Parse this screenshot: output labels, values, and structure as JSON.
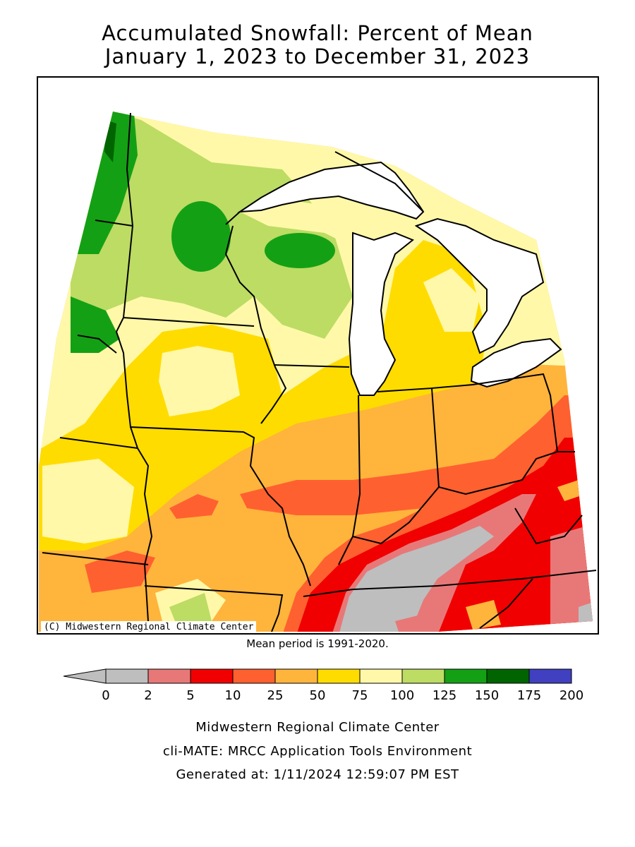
{
  "title_line1": "Accumulated Snowfall: Percent of Mean",
  "title_line2": "January 1, 2023 to December 31, 2023",
  "copyright": "(C) Midwestern Regional Climate Center",
  "mean_period": "Mean period is 1991-2020.",
  "legend": {
    "bins": [
      {
        "from": 0,
        "to": 2,
        "color": "#bebebe"
      },
      {
        "from": 2,
        "to": 5,
        "color": "#e87878"
      },
      {
        "from": 5,
        "to": 10,
        "color": "#f00000"
      },
      {
        "from": 10,
        "to": 25,
        "color": "#ff6030"
      },
      {
        "from": 25,
        "to": 50,
        "color": "#ffb43c"
      },
      {
        "from": 50,
        "to": 75,
        "color": "#ffdc00"
      },
      {
        "from": 75,
        "to": 100,
        "color": "#fff8a8"
      },
      {
        "from": 100,
        "to": 125,
        "color": "#bcdc64"
      },
      {
        "from": 125,
        "to": 150,
        "color": "#14a014"
      },
      {
        "from": 150,
        "to": 175,
        "color": "#006400"
      },
      {
        "from": 175,
        "to": 200,
        "color": "#4040c0"
      }
    ],
    "below_arrow_color": "#bebebe",
    "ticks": [
      "0",
      "2",
      "5",
      "10",
      "25",
      "50",
      "75",
      "100",
      "125",
      "150",
      "175",
      "200"
    ]
  },
  "footer": {
    "line1": "Midwestern Regional Climate Center",
    "line2": "cli-MATE: MRCC Application Tools Environment",
    "line3": "Generated at: 1/11/2024 12:59:07 PM EST"
  }
}
